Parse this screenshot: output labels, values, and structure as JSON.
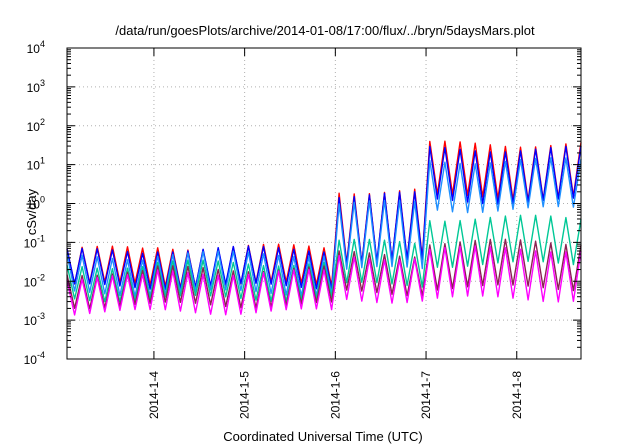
{
  "chart_data": {
    "type": "line",
    "title": "/data/run/goesPlots/archive/2014-01-08/17:00/flux/../bryn/5daysMars.plot",
    "xlabel": "Coordinated Universal Time (UTC)",
    "ylabel": "cSv/day",
    "yscale": "log",
    "ylim": [
      0.0001,
      10000
    ],
    "xlim": [
      "2014-01-03T01:00",
      "2014-01-08T17:00"
    ],
    "grid": true,
    "legend": "none",
    "x_ticks": [
      "2014-1-4",
      "2014-1-5",
      "2014-1-6",
      "2014-1-7",
      "2014-1-8"
    ],
    "y_ticks": [
      {
        "base": "10",
        "exp": "-4"
      },
      {
        "base": "10",
        "exp": "-3"
      },
      {
        "base": "10",
        "exp": "-2"
      },
      {
        "base": "10",
        "exp": "-1"
      },
      {
        "base": "10",
        "exp": "0"
      },
      {
        "base": "10",
        "exp": "1"
      },
      {
        "base": "10",
        "exp": "2"
      },
      {
        "base": "10",
        "exp": "3"
      },
      {
        "base": "10",
        "exp": "4"
      }
    ],
    "series": [
      {
        "color": "#ff0000",
        "values": [
          [
            0.08,
            0.0065
          ],
          [
            0.09,
            0.0065
          ],
          [
            0.09,
            0.0065
          ],
          [
            2.5,
            0.02
          ],
          [
            40,
            1.0
          ]
        ]
      },
      {
        "color": "#0000ff",
        "values": [
          [
            0.07,
            0.006
          ],
          [
            0.08,
            0.006
          ],
          [
            0.08,
            0.006
          ],
          [
            2.0,
            0.018
          ],
          [
            30,
            0.8
          ]
        ]
      },
      {
        "color": "#1e90ff",
        "values": [
          [
            0.05,
            0.004
          ],
          [
            0.06,
            0.004
          ],
          [
            0.06,
            0.004
          ],
          [
            1.2,
            0.012
          ],
          [
            15,
            0.5
          ]
        ]
      },
      {
        "color": "#00c896",
        "values": [
          [
            0.03,
            0.003
          ],
          [
            0.035,
            0.003
          ],
          [
            0.035,
            0.003
          ],
          [
            0.12,
            0.006
          ],
          [
            0.5,
            0.02
          ]
        ]
      },
      {
        "color": "#8b2252",
        "values": [
          [
            0.02,
            0.002
          ],
          [
            0.025,
            0.002
          ],
          [
            0.025,
            0.002
          ],
          [
            0.06,
            0.004
          ],
          [
            0.12,
            0.005
          ]
        ]
      },
      {
        "color": "#ff00ff",
        "values": [
          [
            0.015,
            0.0013
          ],
          [
            0.02,
            0.0013
          ],
          [
            0.02,
            0.0013
          ],
          [
            0.05,
            0.0025
          ],
          [
            0.08,
            0.0025
          ]
        ]
      }
    ]
  }
}
